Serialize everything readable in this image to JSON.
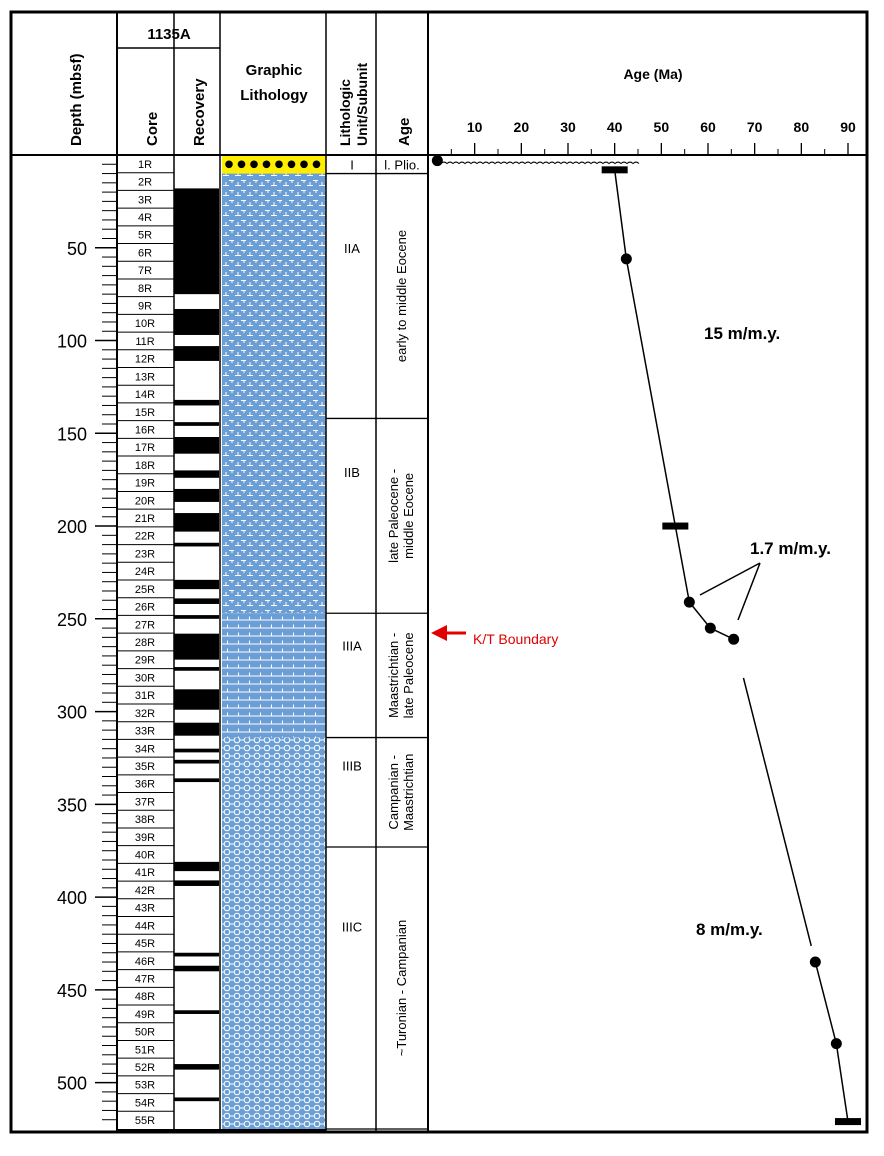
{
  "chart_data": {
    "type": "line",
    "site": "1135A",
    "column_headers": {
      "depth": "Depth (mbsf)",
      "core": "Core",
      "recovery": "Recovery",
      "graphic_lithology_1": "Graphic",
      "graphic_lithology_2": "Lithology",
      "litho_unit_1": "Lithologic",
      "litho_unit_2": "Unit/Subunit",
      "age": "Age"
    },
    "xlabel": "Age (Ma)",
    "x_ticks": [
      10,
      20,
      30,
      40,
      50,
      60,
      70,
      80,
      90
    ],
    "xlim": [
      0,
      90
    ],
    "depth_ticks": [
      50,
      100,
      150,
      200,
      250,
      300,
      350,
      400,
      450,
      500
    ],
    "depth_range": [
      0,
      525
    ],
    "cores": [
      "1R",
      "2R",
      "3R",
      "4R",
      "5R",
      "6R",
      "7R",
      "8R",
      "9R",
      "10R",
      "11R",
      "12R",
      "13R",
      "14R",
      "15R",
      "16R",
      "17R",
      "18R",
      "19R",
      "20R",
      "21R",
      "22R",
      "23R",
      "24R",
      "25R",
      "26R",
      "27R",
      "28R",
      "29R",
      "30R",
      "31R",
      "32R",
      "33R",
      "34R",
      "35R",
      "36R",
      "37R",
      "38R",
      "39R",
      "40R",
      "41R",
      "42R",
      "43R",
      "44R",
      "45R",
      "46R",
      "47R",
      "48R",
      "49R",
      "50R",
      "51R",
      "52R",
      "53R",
      "54R",
      "55R"
    ],
    "recovery_intervals": [
      [
        18,
        75
      ],
      [
        83,
        97
      ],
      [
        103,
        111
      ],
      [
        132,
        135
      ],
      [
        144,
        146
      ],
      [
        152,
        161
      ],
      [
        170,
        174
      ],
      [
        180,
        187
      ],
      [
        193,
        203
      ],
      [
        209,
        211
      ],
      [
        229,
        234
      ],
      [
        239,
        242
      ],
      [
        248,
        250
      ],
      [
        258,
        272
      ],
      [
        276,
        278
      ],
      [
        288,
        299
      ],
      [
        306,
        313
      ],
      [
        320,
        322
      ],
      [
        326,
        328
      ],
      [
        336,
        338
      ],
      [
        381,
        386
      ],
      [
        391,
        394
      ],
      [
        430,
        432
      ],
      [
        437,
        440
      ],
      [
        461,
        463
      ],
      [
        490,
        493
      ],
      [
        508,
        510
      ]
    ],
    "lithologic_units": [
      {
        "label": "I",
        "top": 0,
        "base": 10
      },
      {
        "label": "IIA",
        "top": 10,
        "base": 142
      },
      {
        "label": "IIB",
        "top": 142,
        "base": 247
      },
      {
        "label": "IIIA",
        "top": 247,
        "base": 314
      },
      {
        "label": "IIIB",
        "top": 314,
        "base": 373
      },
      {
        "label": "IIIC",
        "top": 373,
        "base": 525
      }
    ],
    "age_units": [
      {
        "label": "l. Plio.",
        "top": 0,
        "base": 10
      },
      {
        "label": "early to middle Eocene",
        "top": 10,
        "base": 142
      },
      {
        "label_1": "late Paleocene -",
        "label_2": "middle Eocene",
        "top": 142,
        "base": 247
      },
      {
        "label_1": "Maastrichtian -",
        "label_2": "late Paleocene",
        "top": 247,
        "base": 314
      },
      {
        "label_1": "Campanian -",
        "label_2": "Maastrichtian",
        "top": 314,
        "base": 373
      },
      {
        "label": "~Turonian - Campanian",
        "top": 373,
        "base": 525
      }
    ],
    "series": [
      {
        "x": [
          40,
          42.5,
          53,
          56,
          60.5,
          65.5,
          83,
          87.5,
          90
        ],
        "y": [
          8,
          56,
          200,
          241,
          255,
          261,
          435,
          479,
          521
        ]
      }
    ],
    "datums": [
      {
        "age": 2,
        "depth": 3,
        "marker": "circle"
      },
      {
        "age": 42.5,
        "depth": 56,
        "marker": "circle"
      },
      {
        "age": 56,
        "depth": 241,
        "marker": "circle"
      },
      {
        "age": 60.5,
        "depth": 255,
        "marker": "circle"
      },
      {
        "age": 65.5,
        "depth": 261,
        "marker": "circle"
      },
      {
        "age": 83,
        "depth": 435,
        "marker": "circle"
      },
      {
        "age": 87.5,
        "depth": 479,
        "marker": "circle"
      },
      {
        "age": 40,
        "depth": 8,
        "marker": "bar"
      },
      {
        "age": 53,
        "depth": 200,
        "marker": "bar"
      },
      {
        "age": 90,
        "depth": 521,
        "marker": "bar"
      }
    ],
    "annotations": {
      "rate_1": "15 m/m.y.",
      "rate_2": "1.7 m/m.y.",
      "rate_3": "8 m/m.y.",
      "kt": "K/T Boundary"
    },
    "colors": {
      "lithology_fill": "#6a9ed4",
      "top_unit_fill": "#ffee00",
      "kt_arrow": "#e00000"
    }
  }
}
